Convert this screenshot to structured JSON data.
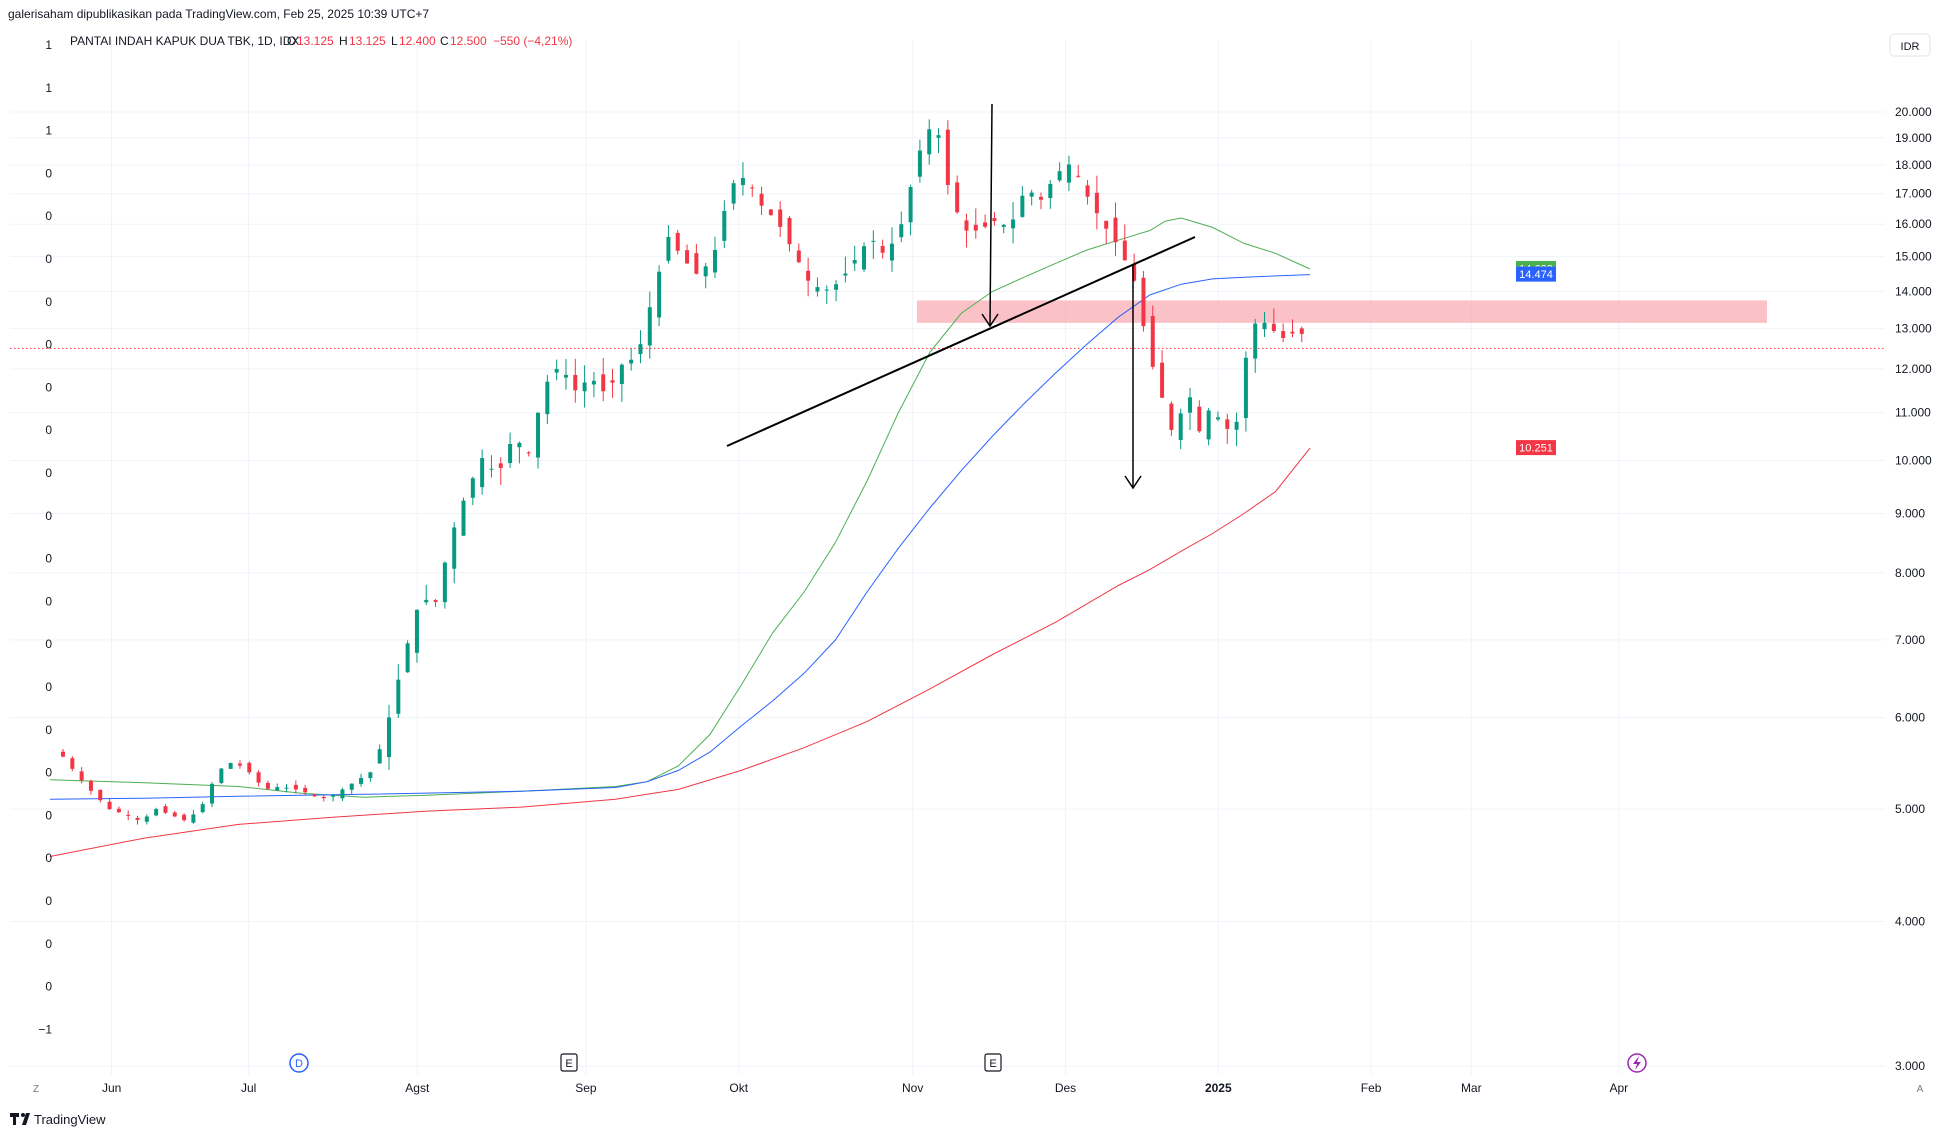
{
  "header": {
    "publish_line": "galerisaham dipublikasikan pada TradingView.com, Feb 25, 2025 10:39 UTC+7",
    "symbol_line": "PANTAI INDAH KAPUK DUA TBK, 1D, IDX",
    "o_label": "O",
    "o_value": "13.125",
    "h_label": "H",
    "h_value": "13.125",
    "l_label": "L",
    "l_value": "12.400",
    "c_label": "C",
    "c_value": "12.500",
    "change": "−550 (−4,21%)",
    "currency": "IDR"
  },
  "left_scale": [
    "1",
    "1",
    "1",
    "0",
    "0",
    "0",
    "0",
    "0",
    "0",
    "0",
    "0",
    "0",
    "0",
    "0",
    "0",
    "0",
    "0",
    "0",
    "0",
    "0",
    "0",
    "0",
    "0",
    "−1"
  ],
  "footer": {
    "brand": "TradingView",
    "left_corner": "Z",
    "right_corner": "A"
  },
  "events": {
    "dividend": "D",
    "earnings_1": "E",
    "earnings_2": "E"
  },
  "colors": {
    "up": "#089981",
    "down": "#f23645",
    "ma_green": "#4caf50",
    "ma_blue": "#2962ff",
    "ma_red": "#f23645",
    "zone": "#f7a1a9",
    "last_price_line": "#f23645"
  },
  "chart_data": {
    "type": "candlestick",
    "title": "PANTAI INDAH KAPUK DUA TBK, 1D, IDX",
    "ylabel": "IDR",
    "y_scale": "log",
    "ylim": [
      2900,
      21500
    ],
    "y_ticks": [
      20000,
      19000,
      18000,
      17000,
      16000,
      15000,
      14000,
      13000,
      12000,
      11000,
      10000,
      9000,
      8000,
      7000,
      6000,
      5000,
      4000,
      3000
    ],
    "y_tick_labels": [
      "20.000",
      "19.000",
      "18.000",
      "17.000",
      "16.000",
      "15.000",
      "14.000",
      "13.000",
      "12.000",
      "11.000",
      "10.000",
      "9.000",
      "8.000",
      "7.000",
      "6.000",
      "5.000",
      "4.000",
      "3.000"
    ],
    "x_tick_labels": [
      "Jun",
      "Jul",
      "Agst",
      "Sep",
      "Okt",
      "Nov",
      "Des",
      "2025",
      "Feb",
      "Mar",
      "Apr"
    ],
    "grid": true,
    "series": [
      {
        "name": "MA green",
        "last_value": "14.638",
        "points": [
          [
            0,
            5300
          ],
          [
            30,
            5270
          ],
          [
            60,
            5230
          ],
          [
            80,
            5160
          ],
          [
            100,
            5120
          ],
          [
            120,
            5140
          ],
          [
            150,
            5180
          ],
          [
            180,
            5230
          ],
          [
            190,
            5280
          ],
          [
            200,
            5450
          ],
          [
            210,
            5800
          ],
          [
            220,
            6400
          ],
          [
            230,
            7100
          ],
          [
            240,
            7700
          ],
          [
            250,
            8500
          ],
          [
            260,
            9600
          ],
          [
            270,
            11000
          ],
          [
            280,
            12400
          ],
          [
            290,
            13400
          ],
          [
            300,
            14000
          ],
          [
            310,
            14400
          ],
          [
            320,
            14800
          ],
          [
            330,
            15200
          ],
          [
            340,
            15500
          ],
          [
            350,
            15800
          ],
          [
            355,
            16100
          ],
          [
            360,
            16200
          ],
          [
            370,
            15900
          ],
          [
            380,
            15400
          ],
          [
            390,
            15100
          ],
          [
            401,
            14638
          ]
        ]
      },
      {
        "name": "MA blue",
        "last_value": "14.474",
        "points": [
          [
            0,
            5100
          ],
          [
            30,
            5110
          ],
          [
            60,
            5130
          ],
          [
            100,
            5150
          ],
          [
            150,
            5180
          ],
          [
            180,
            5220
          ],
          [
            190,
            5280
          ],
          [
            200,
            5400
          ],
          [
            210,
            5600
          ],
          [
            220,
            5900
          ],
          [
            230,
            6200
          ],
          [
            240,
            6550
          ],
          [
            250,
            7000
          ],
          [
            260,
            7700
          ],
          [
            270,
            8400
          ],
          [
            280,
            9100
          ],
          [
            290,
            9800
          ],
          [
            300,
            10500
          ],
          [
            310,
            11200
          ],
          [
            320,
            11900
          ],
          [
            330,
            12600
          ],
          [
            340,
            13300
          ],
          [
            350,
            13900
          ],
          [
            360,
            14200
          ],
          [
            370,
            14350
          ],
          [
            380,
            14400
          ],
          [
            401,
            14474
          ]
        ]
      },
      {
        "name": "MA red",
        "last_value": "10.251",
        "points": [
          [
            0,
            4550
          ],
          [
            30,
            4720
          ],
          [
            60,
            4850
          ],
          [
            90,
            4920
          ],
          [
            120,
            4980
          ],
          [
            150,
            5020
          ],
          [
            180,
            5100
          ],
          [
            200,
            5200
          ],
          [
            220,
            5400
          ],
          [
            240,
            5650
          ],
          [
            260,
            5950
          ],
          [
            280,
            6350
          ],
          [
            300,
            6800
          ],
          [
            320,
            7250
          ],
          [
            340,
            7800
          ],
          [
            350,
            8050
          ],
          [
            360,
            8350
          ],
          [
            370,
            8650
          ],
          [
            380,
            9000
          ],
          [
            390,
            9400
          ],
          [
            401,
            10251
          ]
        ]
      }
    ],
    "resistance_zone": [
      13150,
      13750
    ],
    "last_price": 12500,
    "candles_daily_estimated": true
  }
}
